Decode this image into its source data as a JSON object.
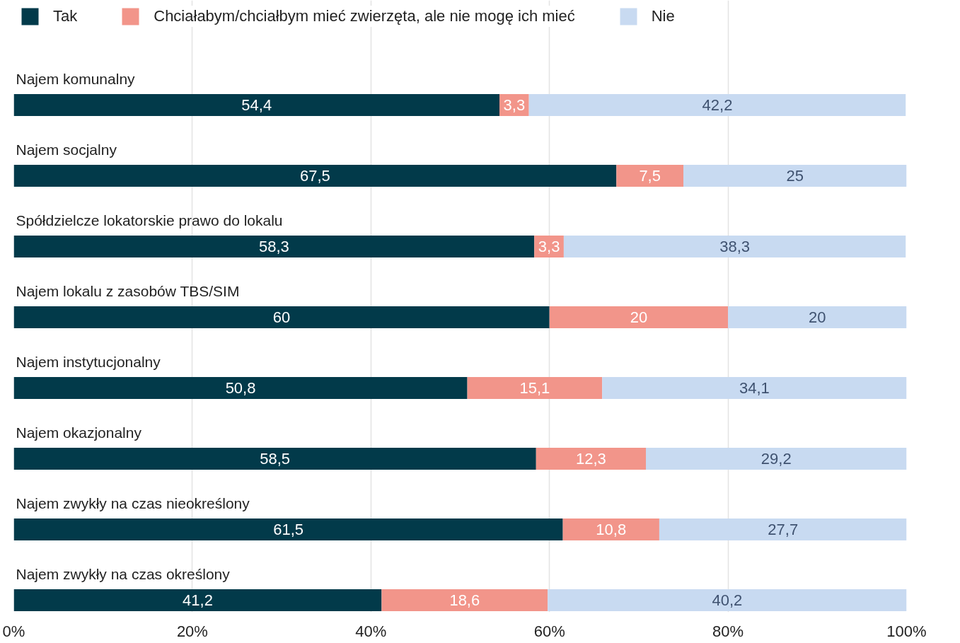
{
  "chart_data": {
    "type": "bar",
    "orientation": "horizontal",
    "stacked": true,
    "categories": [
      "Najem komunalny",
      "Najem socjalny",
      "Spółdzielcze lokatorskie prawo do lokalu",
      "Najem lokalu z zasobów TBS/SIM",
      "Najem instytucjonalny",
      "Najem okazjonalny",
      "Najem zwykły na czas nieokreślony",
      "Najem zwykły na czas określony"
    ],
    "series": [
      {
        "name": "Tak",
        "color": "#023a4a",
        "values": [
          54.4,
          67.5,
          58.3,
          60,
          50.8,
          58.5,
          61.5,
          41.2
        ],
        "value_labels": [
          "54,4",
          "67,5",
          "58,3",
          "60",
          "50,8",
          "58,5",
          "61,5",
          "41,2"
        ]
      },
      {
        "name": "Chciałabym/chciałbym mieć zwierzęta, ale nie mogę ich mieć",
        "color": "#f2958a",
        "values": [
          3.3,
          7.5,
          3.3,
          20,
          15.1,
          12.3,
          10.8,
          18.6
        ],
        "value_labels": [
          "3,3",
          "7,5",
          "3,3",
          "20",
          "15,1",
          "12,3",
          "10,8",
          "18,6"
        ]
      },
      {
        "name": "Nie",
        "color": "#c8daf1",
        "values": [
          42.2,
          25,
          38.3,
          20,
          34.1,
          29.2,
          27.7,
          40.2
        ],
        "value_labels": [
          "42,2",
          "25",
          "38,3",
          "20",
          "34,1",
          "29,2",
          "27,7",
          "40,2"
        ]
      }
    ],
    "xlim": [
      0,
      100
    ],
    "xticks": [
      {
        "value": 0,
        "label": "0%"
      },
      {
        "value": 20,
        "label": "20%"
      },
      {
        "value": 40,
        "label": "40%"
      },
      {
        "value": 60,
        "label": "60%"
      },
      {
        "value": 80,
        "label": "80%"
      },
      {
        "value": 100,
        "label": "100%"
      }
    ],
    "grid": "x",
    "legend": "top left"
  }
}
